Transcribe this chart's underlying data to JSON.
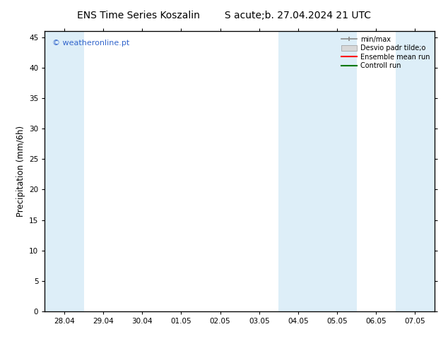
{
  "title_left": "ENS Time Series Koszalin",
  "title_right": "S acute;b. 27.04.2024 21 UTC",
  "ylabel": "Precipitation (mm/6h)",
  "watermark": "© weatheronline.pt",
  "background_color": "#ffffff",
  "plot_bg_color": "#ffffff",
  "ylim": [
    0,
    46
  ],
  "yticks": [
    0,
    5,
    10,
    15,
    20,
    25,
    30,
    35,
    40,
    45
  ],
  "xtick_labels": [
    "28.04",
    "29.04",
    "30.04",
    "01.05",
    "02.05",
    "03.05",
    "04.05",
    "05.05",
    "06.05",
    "07.05"
  ],
  "band_color": "#ddeef8",
  "shaded_x_indices": [
    0,
    1,
    6,
    7,
    8,
    9
  ],
  "legend_labels": [
    "min/max",
    "Desvio padr tilde;o",
    "Ensemble mean run",
    "Controll run"
  ],
  "legend_colors": [
    "#aaaaaa",
    "#cccccc",
    "#ff0000",
    "#007700"
  ],
  "title_fontsize": 10,
  "tick_fontsize": 7.5,
  "ylabel_fontsize": 8.5,
  "watermark_fontsize": 8
}
